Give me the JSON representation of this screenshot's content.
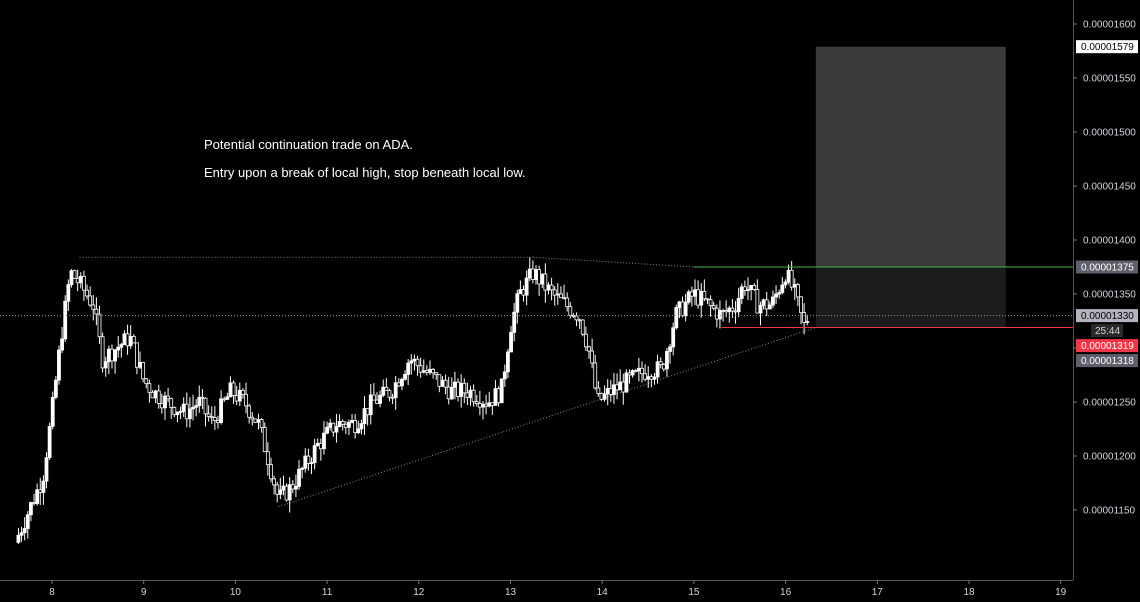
{
  "chart_data": {
    "type": "candlestick",
    "symbol": "ADA",
    "annotations": [
      "Potential continuation trade on ADA.",
      "Entry upon a break of local high, stop beneath local low."
    ],
    "x_ticks": [
      "8",
      "9",
      "10",
      "11",
      "12",
      "13",
      "14",
      "15",
      "16",
      "17",
      "18",
      "19"
    ],
    "y_ticks": [
      "0.00001600",
      "0.00001550",
      "0.00001500",
      "0.00001450",
      "0.00001400",
      "0.00001350",
      "0.00001300",
      "0.00001250",
      "0.00001200",
      "0.00001150"
    ],
    "ylim": [
      1.11e-05,
      1.62e-05
    ],
    "xlim": [
      7.6,
      19.1
    ],
    "price_tags": [
      {
        "label": "0.00001579",
        "value": 1.579e-05,
        "bg": "#ffffff",
        "fg": "#000000"
      },
      {
        "label": "0.00001375",
        "value": 1.375e-05,
        "bg": "#5d606b",
        "fg": "#ffffff"
      },
      {
        "label": "0.00001330",
        "value": 1.33e-05,
        "bg": "#b2b5be",
        "fg": "#000000"
      },
      {
        "label": "0.00001319",
        "value": 1.319e-05,
        "bg": "#f23645",
        "fg": "#ffffff"
      },
      {
        "label": "0.00001318",
        "value": 1.318e-05,
        "bg": "#5d606b",
        "fg": "#ffffff"
      }
    ],
    "countdown": "25:44",
    "target_zone": {
      "x_start": 16.33,
      "x_end": 18.4,
      "y_top": 1.579e-05,
      "y_bottom": 1.319e-05
    },
    "entry_line": {
      "value": 1.375e-05,
      "x_start": 15.0,
      "color": "#4caf50"
    },
    "stop_line": {
      "value": 1.319e-05,
      "x_start": 15.3,
      "color": "#f23645"
    },
    "last_price_line": {
      "value": 1.33e-05
    },
    "trendlines": [
      {
        "x1": 8.3,
        "y1": 1.384e-05,
        "x2": 13.25,
        "y2": 1.384e-05
      },
      {
        "x1": 13.25,
        "y1": 1.384e-05,
        "x2": 15.0,
        "y2": 1.375e-05
      },
      {
        "x1": 10.47,
        "y1": 1.153e-05,
        "x2": 16.33,
        "y2": 1.319e-05
      }
    ],
    "path": [
      [
        7.6,
        1.12e-05
      ],
      [
        7.75,
        1.15e-05
      ],
      [
        7.9,
        1.18e-05
      ],
      [
        8.0,
        1.24e-05
      ],
      [
        8.1,
        1.31e-05
      ],
      [
        8.2,
        1.37e-05
      ],
      [
        8.3,
        1.36e-05
      ],
      [
        8.45,
        1.34e-05
      ],
      [
        8.55,
        1.29e-05
      ],
      [
        8.7,
        1.3e-05
      ],
      [
        8.85,
        1.31e-05
      ],
      [
        9.0,
        1.27e-05
      ],
      [
        9.1,
        1.26e-05
      ],
      [
        9.25,
        1.25e-05
      ],
      [
        9.45,
        1.24e-05
      ],
      [
        9.6,
        1.25e-05
      ],
      [
        9.75,
        1.23e-05
      ],
      [
        9.95,
        1.26e-05
      ],
      [
        10.1,
        1.25e-05
      ],
      [
        10.25,
        1.23e-05
      ],
      [
        10.35,
        1.2e-05
      ],
      [
        10.47,
        1.16e-05
      ],
      [
        10.6,
        1.17e-05
      ],
      [
        10.75,
        1.19e-05
      ],
      [
        10.9,
        1.21e-05
      ],
      [
        11.1,
        1.23e-05
      ],
      [
        11.3,
        1.23e-05
      ],
      [
        11.5,
        1.25e-05
      ],
      [
        11.7,
        1.26e-05
      ],
      [
        11.9,
        1.29e-05
      ],
      [
        12.05,
        1.28e-05
      ],
      [
        12.2,
        1.27e-05
      ],
      [
        12.35,
        1.26e-05
      ],
      [
        12.55,
        1.26e-05
      ],
      [
        12.75,
        1.25e-05
      ],
      [
        12.9,
        1.26e-05
      ],
      [
        13.0,
        1.32e-05
      ],
      [
        13.1,
        1.35e-05
      ],
      [
        13.25,
        1.37e-05
      ],
      [
        13.45,
        1.35e-05
      ],
      [
        13.6,
        1.34e-05
      ],
      [
        13.75,
        1.33e-05
      ],
      [
        13.85,
        1.3e-05
      ],
      [
        13.95,
        1.25e-05
      ],
      [
        14.1,
        1.26e-05
      ],
      [
        14.3,
        1.27e-05
      ],
      [
        14.5,
        1.28e-05
      ],
      [
        14.65,
        1.28e-05
      ],
      [
        14.8,
        1.33e-05
      ],
      [
        15.0,
        1.35e-05
      ],
      [
        15.15,
        1.34e-05
      ],
      [
        15.3,
        1.33e-05
      ],
      [
        15.45,
        1.34e-05
      ],
      [
        15.55,
        1.36e-05
      ],
      [
        15.7,
        1.34e-05
      ],
      [
        15.85,
        1.34e-05
      ],
      [
        16.0,
        1.37e-05
      ],
      [
        16.1,
        1.35e-05
      ],
      [
        16.2,
        1.32e-05
      ],
      [
        16.25,
        1.33e-05
      ]
    ]
  }
}
